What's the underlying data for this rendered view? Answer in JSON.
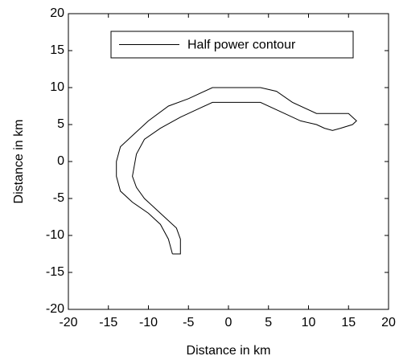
{
  "chart_data": {
    "type": "line",
    "xlabel": "Distance in km",
    "ylabel": "Distance in km",
    "xlim": [
      -20,
      20
    ],
    "ylim": [
      -20,
      20
    ],
    "xticks": [
      -20,
      -15,
      -10,
      -5,
      0,
      5,
      10,
      15,
      20
    ],
    "yticks": [
      -20,
      -15,
      -10,
      -5,
      0,
      5,
      10,
      15,
      20
    ],
    "legend": "upper right",
    "series": [
      {
        "name": "Half power contour",
        "color": "#000000",
        "x": [
          -7,
          -7.5,
          -8.5,
          -10,
          -12,
          -13.5,
          -14,
          -14,
          -13.5,
          -12,
          -10,
          -7.5,
          -5,
          -2,
          4,
          6,
          8,
          11,
          12,
          15,
          16,
          15.5,
          14,
          13,
          12,
          11,
          9,
          7,
          4,
          -2,
          -4,
          -6,
          -8.5,
          -10.5,
          -11.5,
          -12,
          -11.5,
          -10.5,
          -8,
          -6.5,
          -6,
          -6,
          -7
        ],
        "y": [
          -12.5,
          -10.5,
          -8.5,
          -7,
          -5.5,
          -4,
          -2,
          0,
          2,
          3.5,
          5.5,
          7.5,
          8.5,
          10,
          10,
          9.5,
          8,
          6.5,
          6.5,
          6.5,
          5.5,
          5,
          4.5,
          4.2,
          4.5,
          5,
          5.5,
          6.5,
          8,
          8,
          7,
          6,
          4.5,
          3,
          1,
          -2,
          -3.5,
          -5,
          -7.5,
          -9,
          -10.5,
          -12.5,
          -12.5
        ]
      }
    ]
  }
}
